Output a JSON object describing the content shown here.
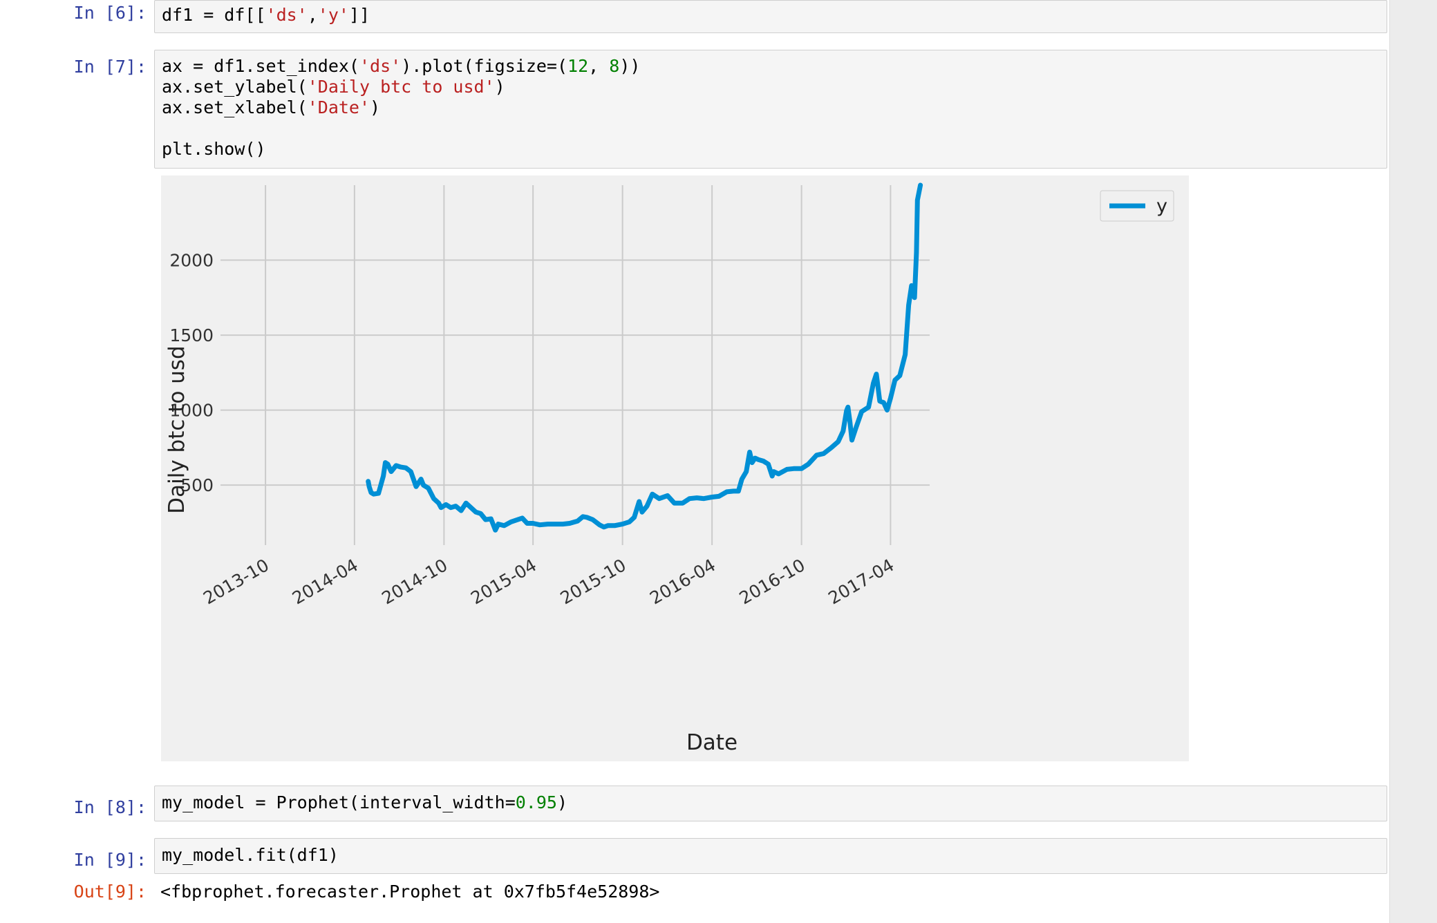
{
  "cells": {
    "c6": {
      "prompt": "In [6]:"
    },
    "c7": {
      "prompt": "In [7]:"
    },
    "c8": {
      "prompt": "In [8]:"
    },
    "c9": {
      "prompt": "In [9]:",
      "out_prompt": "Out[9]:",
      "output": "<fbprophet.forecaster.Prophet at 0x7fb5f4e52898>"
    }
  },
  "code": {
    "c6_a": "df1 = df[[",
    "c6_s1": "'ds'",
    "c6_b": ",",
    "c6_s2": "'y'",
    "c6_c": "]]",
    "c7_l1_a": "ax = df1.set_index(",
    "c7_l1_s": "'ds'",
    "c7_l1_b": ").plot(figsize=(",
    "c7_l1_n1": "12",
    "c7_l1_c": ", ",
    "c7_l1_n2": "8",
    "c7_l1_d": "))",
    "c7_l2_a": "ax.set_ylabel(",
    "c7_l2_s": "'Daily btc to usd'",
    "c7_l2_b": ")",
    "c7_l3_a": "ax.set_xlabel(",
    "c7_l3_s": "'Date'",
    "c7_l3_b": ")",
    "c7_l5": "plt.show()",
    "c8_a": "my_model = Prophet(interval_width=",
    "c8_n": "0.95",
    "c8_b": ")",
    "c9": "my_model.fit(df1)"
  },
  "colors": {
    "line": "#008fd5",
    "plot_bg": "#f0f0f0",
    "grid": "#cbcbcb",
    "in_prompt": "#303f9f",
    "out_prompt": "#d84315"
  },
  "chart_data": {
    "type": "line",
    "xlabel": "Date",
    "ylabel": "Daily btc to usd",
    "x_ticks": [
      "2013-10",
      "2014-04",
      "2014-10",
      "2015-04",
      "2015-10",
      "2016-04",
      "2016-10",
      "2017-04"
    ],
    "y_ticks": [
      500,
      1000,
      1500,
      2000
    ],
    "xlim": [
      "2013-07-01",
      "2017-06-20"
    ],
    "ylim": [
      100,
      2500
    ],
    "grid": true,
    "legend_position": "top-right",
    "series": [
      {
        "name": "y",
        "x": [
          "2014-04-29",
          "2014-05-01",
          "2014-05-05",
          "2014-05-10",
          "2014-05-20",
          "2014-05-30",
          "2014-06-03",
          "2014-06-08",
          "2014-06-15",
          "2014-06-25",
          "2014-07-05",
          "2014-07-15",
          "2014-07-25",
          "2014-08-05",
          "2014-08-15",
          "2014-08-20",
          "2014-08-30",
          "2014-09-10",
          "2014-09-20",
          "2014-09-25",
          "2014-10-05",
          "2014-10-15",
          "2014-10-25",
          "2014-11-05",
          "2014-11-15",
          "2014-11-25",
          "2014-12-05",
          "2014-12-15",
          "2014-12-25",
          "2015-01-05",
          "2015-01-14",
          "2015-01-20",
          "2015-02-01",
          "2015-02-15",
          "2015-03-01",
          "2015-03-10",
          "2015-03-20",
          "2015-04-01",
          "2015-04-15",
          "2015-05-01",
          "2015-05-15",
          "2015-06-01",
          "2015-06-15",
          "2015-07-01",
          "2015-07-12",
          "2015-07-20",
          "2015-08-01",
          "2015-08-15",
          "2015-08-24",
          "2015-09-01",
          "2015-09-15",
          "2015-10-01",
          "2015-10-15",
          "2015-10-25",
          "2015-11-04",
          "2015-11-10",
          "2015-11-20",
          "2015-12-01",
          "2015-12-15",
          "2016-01-01",
          "2016-01-15",
          "2016-02-01",
          "2016-02-15",
          "2016-03-01",
          "2016-03-15",
          "2016-04-01",
          "2016-04-15",
          "2016-05-01",
          "2016-05-15",
          "2016-05-25",
          "2016-06-01",
          "2016-06-10",
          "2016-06-17",
          "2016-06-22",
          "2016-06-28",
          "2016-07-05",
          "2016-07-15",
          "2016-07-25",
          "2016-08-02",
          "2016-08-05",
          "2016-08-15",
          "2016-09-01",
          "2016-09-15",
          "2016-10-01",
          "2016-10-15",
          "2016-11-01",
          "2016-11-15",
          "2016-12-01",
          "2016-12-15",
          "2016-12-25",
          "2017-01-01",
          "2017-01-04",
          "2017-01-08",
          "2017-01-12",
          "2017-01-20",
          "2017-02-01",
          "2017-02-15",
          "2017-02-25",
          "2017-03-03",
          "2017-03-10",
          "2017-03-18",
          "2017-03-25",
          "2017-04-01",
          "2017-04-10",
          "2017-04-20",
          "2017-05-01",
          "2017-05-08",
          "2017-05-14",
          "2017-05-20",
          "2017-05-24",
          "2017-05-26",
          "2017-06-01"
        ],
        "values": [
          525,
          490,
          450,
          440,
          445,
          560,
          650,
          640,
          590,
          630,
          620,
          615,
          590,
          490,
          540,
          500,
          480,
          410,
          380,
          350,
          370,
          350,
          360,
          330,
          380,
          350,
          320,
          310,
          270,
          275,
          200,
          240,
          230,
          255,
          270,
          280,
          245,
          245,
          235,
          240,
          240,
          240,
          245,
          260,
          290,
          285,
          270,
          235,
          220,
          230,
          230,
          240,
          255,
          285,
          390,
          320,
          360,
          440,
          410,
          430,
          380,
          380,
          410,
          415,
          410,
          420,
          425,
          455,
          460,
          460,
          540,
          590,
          720,
          650,
          680,
          670,
          660,
          640,
          560,
          590,
          575,
          605,
          610,
          610,
          640,
          700,
          710,
          750,
          790,
          860,
          995,
          1020,
          920,
          800,
          880,
          990,
          1020,
          1180,
          1240,
          1060,
          1050,
          1000,
          1080,
          1200,
          1230,
          1370,
          1700,
          1830,
          1750,
          2050,
          2400,
          2500
        ]
      }
    ]
  }
}
